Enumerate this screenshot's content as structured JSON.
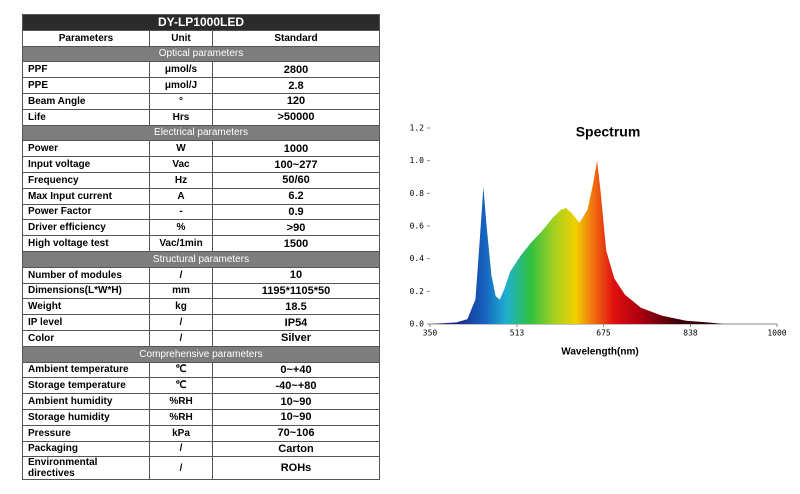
{
  "table": {
    "title": "DY-LP1000LED",
    "header": [
      "Parameters",
      "Unit",
      "Standard"
    ],
    "sections": [
      {
        "name": "Optical parameters",
        "rows": [
          [
            "PPF",
            "μmol/s",
            "2800"
          ],
          [
            "PPE",
            "μmol/J",
            "2.8"
          ],
          [
            "Beam Angle",
            "°",
            "120"
          ],
          [
            "Life",
            "Hrs",
            ">50000"
          ]
        ]
      },
      {
        "name": "Electrical parameters",
        "rows": [
          [
            "Power",
            "W",
            "1000"
          ],
          [
            "Input voltage",
            "Vac",
            "100~277"
          ],
          [
            "Frequency",
            "Hz",
            "50/60"
          ],
          [
            "Max Input current",
            "A",
            "6.2"
          ],
          [
            "Power Factor",
            "-",
            "0.9"
          ],
          [
            "Driver efficiency",
            "%",
            ">90"
          ],
          [
            "High voltage test",
            "Vac/1min",
            "1500"
          ]
        ]
      },
      {
        "name": "Structural parameters",
        "rows": [
          [
            "Number of modules",
            "/",
            "10"
          ],
          [
            "Dimensions(L*W*H)",
            "mm",
            "1195*1105*50"
          ],
          [
            "Weight",
            "kg",
            "18.5"
          ],
          [
            "IP level",
            "/",
            "IP54"
          ],
          [
            "Color",
            "/",
            "Silver"
          ]
        ]
      },
      {
        "name": "Comprehensive parameters",
        "rows": [
          [
            "Ambient temperature",
            "℃",
            "0~+40"
          ],
          [
            "Storage temperature",
            "℃",
            "-40~+80"
          ],
          [
            "Ambient humidity",
            "%RH",
            "10~90"
          ],
          [
            "Storage humidity",
            "%RH",
            "10~90"
          ],
          [
            "Pressure",
            "kPa",
            "70~106"
          ],
          [
            "Packaging",
            "/",
            "Carton"
          ],
          [
            "Environmental directives",
            "/",
            "ROHs"
          ]
        ]
      }
    ]
  },
  "chart_data": {
    "type": "area",
    "title": "Spectrum",
    "x_label": "Wavelength(nm)",
    "x": [
      350,
      400,
      420,
      435,
      443,
      450,
      456,
      465,
      473,
      481,
      490,
      500,
      520,
      540,
      560,
      580,
      595,
      605,
      615,
      630,
      645,
      655,
      663,
      670,
      680,
      695,
      715,
      745,
      785,
      830,
      870,
      900,
      1000
    ],
    "values": [
      0,
      0.01,
      0.03,
      0.15,
      0.5,
      0.84,
      0.6,
      0.3,
      0.17,
      0.15,
      0.22,
      0.32,
      0.42,
      0.5,
      0.57,
      0.65,
      0.7,
      0.71,
      0.68,
      0.62,
      0.7,
      0.85,
      1.0,
      0.8,
      0.45,
      0.28,
      0.18,
      0.1,
      0.05,
      0.02,
      0.01,
      0,
      0
    ],
    "xlim": [
      350,
      1000
    ],
    "xticks": [
      350,
      513,
      675,
      838,
      1000
    ],
    "ylim": [
      0,
      1.2
    ],
    "yticks": [
      {
        "value": 0,
        "label": "0.0"
      },
      0.2,
      0.4,
      0.6,
      0.8,
      {
        "value": 1,
        "label": "1.0"
      },
      1.2
    ]
  }
}
